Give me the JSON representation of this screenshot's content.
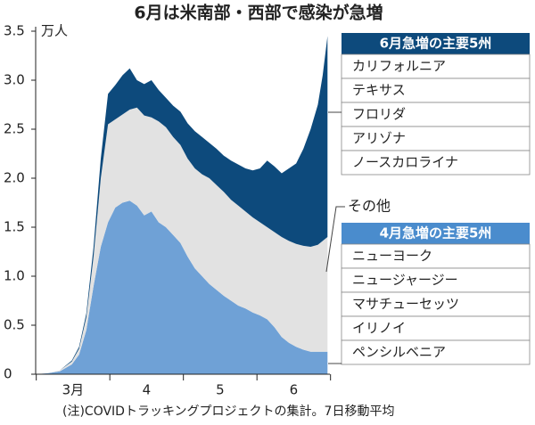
{
  "chart_data": {
    "type": "stacked_area",
    "title": "6月は米南部・西部で感染が急増",
    "y_unit": "万人",
    "note": "(注)COVIDトラッキングプロジェクトの集計。7日移動平均",
    "x": [
      0,
      5,
      10,
      15,
      18,
      21,
      24,
      27,
      30,
      33,
      36,
      39,
      42,
      45,
      48,
      51,
      54,
      57,
      60,
      63,
      66,
      69,
      72,
      75,
      78,
      81,
      84,
      87,
      90,
      93,
      96,
      99,
      102,
      105,
      108,
      111,
      114,
      117,
      119,
      121
    ],
    "xlim": [
      0,
      122
    ],
    "xticks": [
      {
        "value": 15.5,
        "label": "3月"
      },
      {
        "value": 46,
        "label": "4"
      },
      {
        "value": 76.5,
        "label": "5"
      },
      {
        "value": 107,
        "label": "6"
      }
    ],
    "ylim": [
      0,
      3.5
    ],
    "yticks": [
      0,
      0.5,
      {
        "value": 1,
        "label": "1.0"
      },
      1.5,
      {
        "value": 2,
        "label": "2.0"
      },
      2.5,
      {
        "value": 3,
        "label": "3.0"
      },
      3.5
    ],
    "series": [
      {
        "name": "4月急増の主要5州",
        "color": "#6fa1d6",
        "header_color": "#4a8ccd",
        "members": [
          "ニューヨーク",
          "ニュージャージー",
          "マサチューセッツ",
          "イリノイ",
          "ペンシルベニア"
        ],
        "values": [
          0,
          0.01,
          0.03,
          0.1,
          0.2,
          0.45,
          0.9,
          1.3,
          1.55,
          1.7,
          1.75,
          1.77,
          1.72,
          1.62,
          1.66,
          1.55,
          1.5,
          1.42,
          1.34,
          1.2,
          1.08,
          1.0,
          0.92,
          0.86,
          0.8,
          0.75,
          0.7,
          0.67,
          0.63,
          0.6,
          0.56,
          0.48,
          0.38,
          0.32,
          0.28,
          0.25,
          0.23,
          0.23,
          0.23,
          0.23
        ]
      },
      {
        "name": "その他",
        "color": "#e2e2e2",
        "values": [
          0,
          0,
          0.01,
          0.03,
          0.06,
          0.13,
          0.3,
          0.7,
          1.0,
          0.9,
          0.9,
          0.93,
          1.0,
          1.02,
          0.96,
          1.03,
          1.02,
          1.0,
          1.0,
          1.0,
          1.02,
          1.04,
          1.08,
          1.07,
          1.06,
          1.03,
          1.02,
          0.99,
          0.97,
          0.95,
          0.94,
          0.97,
          1.02,
          1.04,
          1.05,
          1.06,
          1.07,
          1.09,
          1.13,
          1.17
        ]
      },
      {
        "name": "6月急増の主要5州",
        "color": "#0d4a7c",
        "header_color": "#0d4a7c",
        "members": [
          "カリフォルニア",
          "テキサス",
          "フロリダ",
          "アリゾナ",
          "ノースカロライナ"
        ],
        "values": [
          0,
          0,
          0,
          0.01,
          0.02,
          0.04,
          0.1,
          0.2,
          0.31,
          0.35,
          0.4,
          0.42,
          0.28,
          0.32,
          0.38,
          0.32,
          0.3,
          0.32,
          0.34,
          0.36,
          0.38,
          0.38,
          0.36,
          0.37,
          0.37,
          0.4,
          0.42,
          0.44,
          0.48,
          0.55,
          0.68,
          0.67,
          0.65,
          0.74,
          0.82,
          0.99,
          1.2,
          1.43,
          1.69,
          2.05
        ]
      }
    ]
  }
}
